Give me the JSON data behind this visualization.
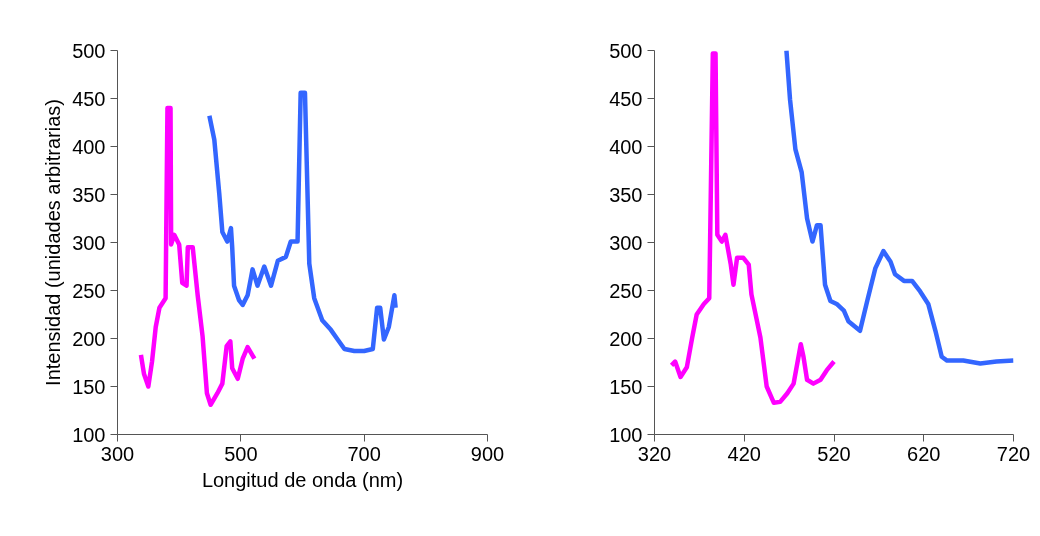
{
  "chart_data": [
    {
      "type": "line",
      "xlabel": "Longitud de onda (nm)",
      "ylabel": "Intensidad (unidades arbitrarias)",
      "xlim": [
        300,
        900
      ],
      "xticks": [
        300,
        500,
        700,
        900
      ],
      "ylim": [
        100,
        500
      ],
      "yticks": [
        100,
        150,
        200,
        250,
        300,
        350,
        400,
        450,
        500
      ],
      "grid": false,
      "marker": "none",
      "line_style": "solid",
      "series": [
        {
          "color": "#ff00ff",
          "x": [
            338,
            343,
            350,
            356,
            362,
            368,
            378,
            381,
            386,
            387,
            392,
            400,
            405,
            412,
            414,
            422,
            430,
            438,
            445,
            451,
            462,
            470,
            477,
            483,
            486,
            495,
            503,
            511,
            522
          ],
          "values": [
            183,
            163,
            150,
            176,
            212,
            232,
            242,
            440,
            440,
            298,
            308,
            298,
            258,
            255,
            295,
            295,
            245,
            202,
            143,
            131,
            143,
            153,
            192,
            197,
            169,
            158,
            179,
            191,
            179
          ]
        },
        {
          "color": "#3366ff",
          "x": [
            449,
            457,
            465,
            470,
            478,
            484,
            486,
            489,
            497,
            503,
            511,
            519,
            527,
            538,
            549,
            560,
            573,
            581,
            592,
            597,
            604,
            611,
            619,
            632,
            646,
            657,
            668,
            684,
            700,
            714,
            721,
            726,
            732,
            740,
            749,
            751
          ],
          "values": [
            432,
            407,
            351,
            311,
            301,
            315,
            295,
            255,
            240,
            235,
            245,
            272,
            255,
            275,
            255,
            281,
            285,
            301,
            301,
            456,
            456,
            278,
            242,
            219,
            209,
            199,
            189,
            187,
            187,
            189,
            232,
            232,
            199,
            212,
            245,
            232
          ]
        }
      ]
    },
    {
      "type": "line",
      "xlim": [
        320,
        720
      ],
      "xticks": [
        320,
        420,
        520,
        620,
        720
      ],
      "ylim": [
        100,
        500
      ],
      "yticks": [
        100,
        150,
        200,
        250,
        300,
        350,
        400,
        450,
        500
      ],
      "grid": false,
      "marker": "none",
      "line_style": "solid",
      "series": [
        {
          "color": "#ff00ff",
          "x": [
            339,
            343,
            349,
            356,
            362,
            367,
            375,
            381,
            382,
            385,
            388,
            390,
            395,
            399,
            405,
            408,
            412,
            419,
            425,
            428,
            438,
            445,
            453,
            460,
            468,
            475,
            483,
            486,
            490,
            497,
            505,
            512,
            520
          ],
          "values": [
            172,
            176,
            160,
            170,
            201,
            225,
            236,
            242,
            304,
            497,
            497,
            308,
            301,
            308,
            277,
            256,
            284,
            284,
            277,
            246,
            201,
            150,
            133,
            134,
            143,
            153,
            194,
            181,
            157,
            153,
            157,
            167,
            176
          ]
        },
        {
          "color": "#3366ff",
          "x": [
            467,
            471,
            477,
            484,
            490,
            496,
            501,
            505,
            510,
            516,
            523,
            531,
            536,
            549,
            557,
            566,
            575,
            583,
            588,
            598,
            607,
            616,
            625,
            633,
            640,
            646,
            664,
            683,
            701,
            720
          ],
          "values": [
            500,
            449,
            397,
            373,
            325,
            301,
            318,
            318,
            256,
            239,
            236,
            229,
            218,
            208,
            239,
            273,
            291,
            280,
            267,
            260,
            260,
            249,
            236,
            208,
            181,
            177,
            177,
            174,
            176,
            177
          ]
        }
      ]
    }
  ]
}
